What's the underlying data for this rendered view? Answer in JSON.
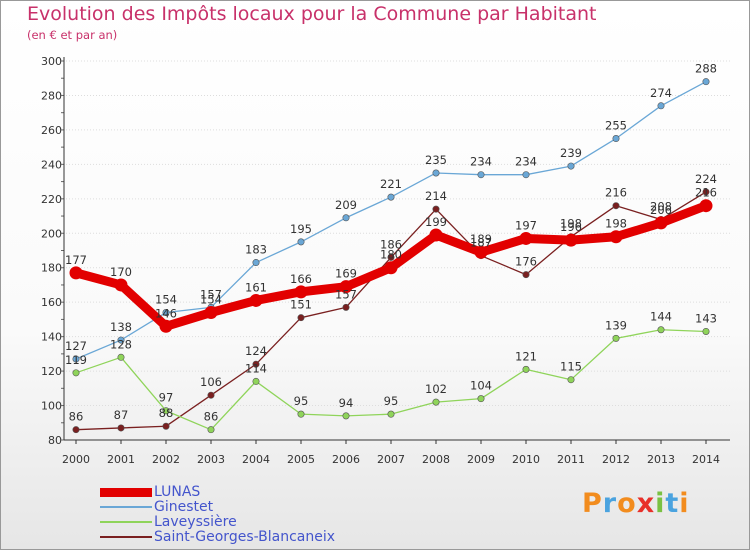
{
  "title": "Evolution des Impôts locaux pour la Commune par Habitant",
  "subtitle": "(en € et par an)",
  "logo": "Proxiti",
  "colors": {
    "title": "#c8316a",
    "axis": "#333333",
    "grid": "#dddddd",
    "label": "#333333",
    "legend_text": "#4455cc"
  },
  "chart_data": {
    "type": "line",
    "categories": [
      "2000",
      "2001",
      "2002",
      "2003",
      "2004",
      "2005",
      "2006",
      "2007",
      "2008",
      "2009",
      "2010",
      "2011",
      "2012",
      "2013",
      "2014"
    ],
    "ylim": [
      80,
      300
    ],
    "yticks": [
      80,
      100,
      120,
      140,
      160,
      180,
      200,
      220,
      240,
      260,
      280,
      300
    ],
    "grid": true,
    "legend_position": "bottom-left",
    "series": [
      {
        "name": "LUNAS",
        "color": "#e20000",
        "values": [
          177,
          170,
          146,
          154,
          161,
          166,
          169,
          180,
          199,
          189,
          197,
          196,
          198,
          206,
          216
        ],
        "labels": [
          "177",
          "170",
          "146",
          "154",
          "161",
          "166",
          "169",
          "180",
          "199",
          "189",
          "197",
          "196",
          "198",
          "206",
          "216"
        ]
      },
      {
        "name": "Ginestet",
        "color": "#6aa7d6",
        "values": [
          127,
          138,
          154,
          157,
          183,
          195,
          209,
          221,
          235,
          234,
          234,
          239,
          255,
          274,
          288
        ],
        "labels": [
          "127",
          "138",
          "154",
          "157",
          "183",
          "195",
          "209",
          "221",
          "235",
          "234",
          "234",
          "239",
          "255",
          "274",
          "288"
        ]
      },
      {
        "name": "Laveyssière",
        "color": "#8fd45a",
        "values": [
          119,
          128,
          97,
          86,
          114,
          95,
          94,
          95,
          102,
          104,
          121,
          115,
          139,
          144,
          143
        ],
        "labels": [
          "119",
          "128",
          "97",
          "86",
          "114",
          "95",
          "94",
          "95",
          "102",
          "104",
          "121",
          "115",
          "139",
          "144",
          "143"
        ]
      },
      {
        "name": "Saint-Georges-Blancaneix",
        "color": "#7a2020",
        "values": [
          86,
          87,
          88,
          106,
          124,
          151,
          157,
          186,
          214,
          187,
          176,
          198,
          216,
          208,
          224
        ],
        "labels": [
          "86",
          "87",
          "88",
          "106",
          "124",
          "151",
          "157",
          "186",
          "214",
          "187",
          "176",
          "198",
          "216",
          "208",
          "224"
        ]
      }
    ]
  }
}
